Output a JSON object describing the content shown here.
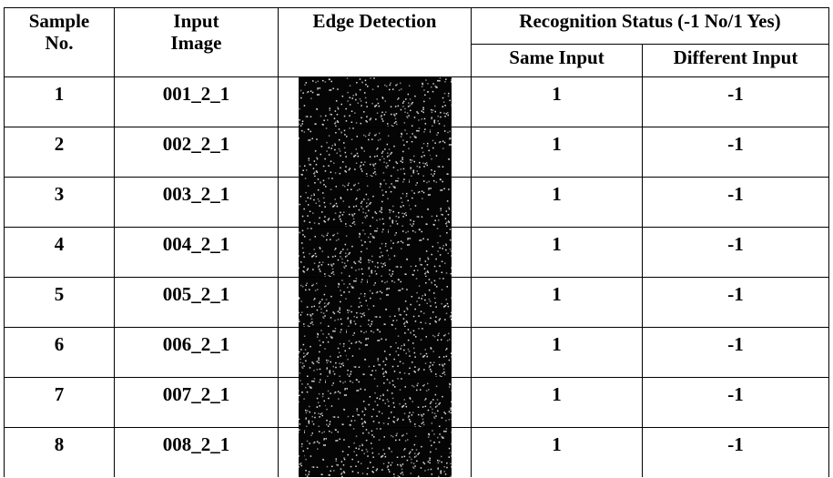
{
  "table": {
    "headers": {
      "sample_no": "Sample No.",
      "input_image": "Input Image",
      "edge_detection": "Edge Detection",
      "recognition_status": "Recognition Status (-1 No/1 Yes)",
      "same_input": "Same Input",
      "different_input": "Different Input"
    },
    "rows": [
      [
        1,
        "001_2_1",
        1,
        -1
      ],
      [
        2,
        "002_2_1",
        1,
        -1
      ],
      [
        3,
        "003_2_1",
        1,
        -1
      ],
      [
        4,
        "004_2_1",
        1,
        -1
      ],
      [
        5,
        "005_2_1",
        1,
        -1
      ],
      [
        6,
        "006_2_1",
        1,
        -1
      ],
      [
        7,
        "007_2_1",
        1,
        -1
      ],
      [
        8,
        "008_2_1",
        1,
        -1
      ]
    ]
  }
}
